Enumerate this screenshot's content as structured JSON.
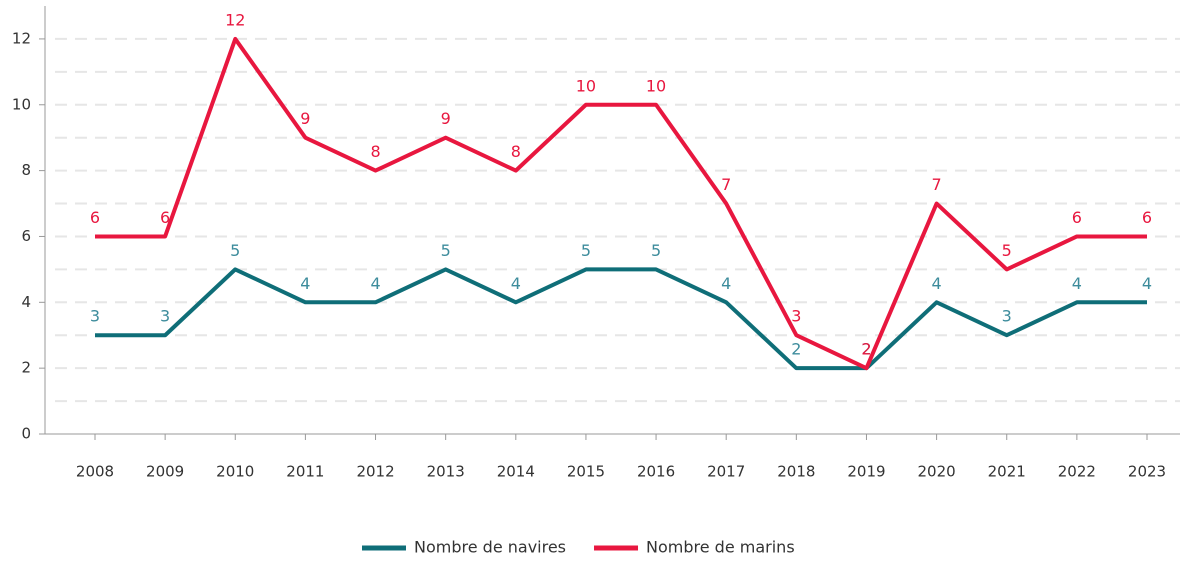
{
  "chart_data": {
    "type": "line",
    "categories": [
      "2008",
      "2009",
      "2010",
      "2011",
      "2012",
      "2013",
      "2014",
      "2015",
      "2016",
      "2017",
      "2018",
      "2019",
      "2020",
      "2021",
      "2022",
      "2023"
    ],
    "series": [
      {
        "name": "Nombre de navires",
        "color": "#0f6e78",
        "values": [
          3,
          3,
          5,
          4,
          4,
          5,
          4,
          5,
          5,
          4,
          2,
          2,
          4,
          3,
          4,
          4
        ]
      },
      {
        "name": "Nombre de marins",
        "color": "#e8173f",
        "values": [
          6,
          6,
          12,
          9,
          8,
          9,
          8,
          10,
          10,
          7,
          3,
          2,
          7,
          5,
          6,
          6
        ]
      }
    ],
    "ylim": [
      0,
      13
    ],
    "yticks": [
      0,
      2,
      4,
      6,
      8,
      10,
      12
    ],
    "grid": true,
    "legend": "bottom"
  }
}
